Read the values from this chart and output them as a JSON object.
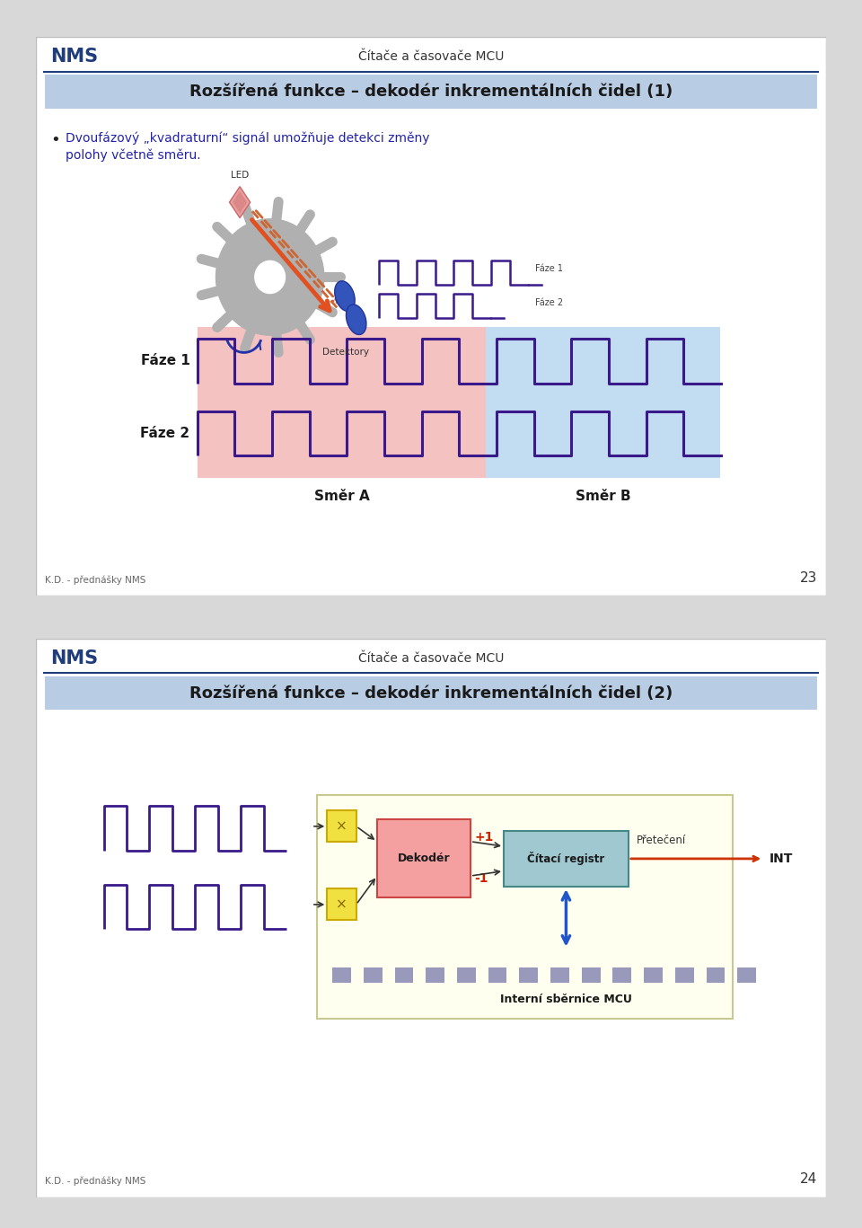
{
  "slide1_title": "Rozšířená funkce – dekodér inkrementálních čidel (1)",
  "slide2_title": "Rozšířená funkce – dekodér inkrementálních čidel (2)",
  "header_left": "NMS",
  "header_right": "Čítače a časovače MCU",
  "footer_left": "K.D. - přednášky NMS",
  "slide1_page": "23",
  "slide2_page": "24",
  "bullet_text_line1": "Dvoufázový „kvadraturní“ signál umožňuje detekci změny",
  "bullet_text_line2": "polohy včetně směru.",
  "faze1_label": "Fáze 1",
  "faze2_label": "Fáze 2",
  "smer_a_label": "Směr A",
  "smer_b_label": "Směr B",
  "led_label": "LED",
  "detektory_label": "Detektory",
  "header_color": "#1f3d7a",
  "title_bg1": "#b8cce4",
  "title_bg2": "#b8cce4",
  "title_color": "#1a1a1a",
  "signal_color": "#3a1a8a",
  "smera_color": "#f4b8b8",
  "smerb_color": "#b8d8f0",
  "led_color": "#e8a0a0",
  "gear_color": "#b0b0b0",
  "arrow_orange": "#e05020",
  "arrow_dashed": "#cc6633",
  "detector_color": "#3355bb",
  "slide_gap_color": "#cccccc",
  "dekoder_fill": "#f4a0a0",
  "dekoder_edge": "#cc4444",
  "citaci_fill": "#a0c8d0",
  "citaci_edge": "#448888",
  "yellow_fill": "#fffff0",
  "xor_fill": "#f0e040",
  "xor_edge": "#ccaa00",
  "bus_color": "#9999bb",
  "int_arrow_color": "#cc3300",
  "bus_arrow_color": "#2255cc"
}
